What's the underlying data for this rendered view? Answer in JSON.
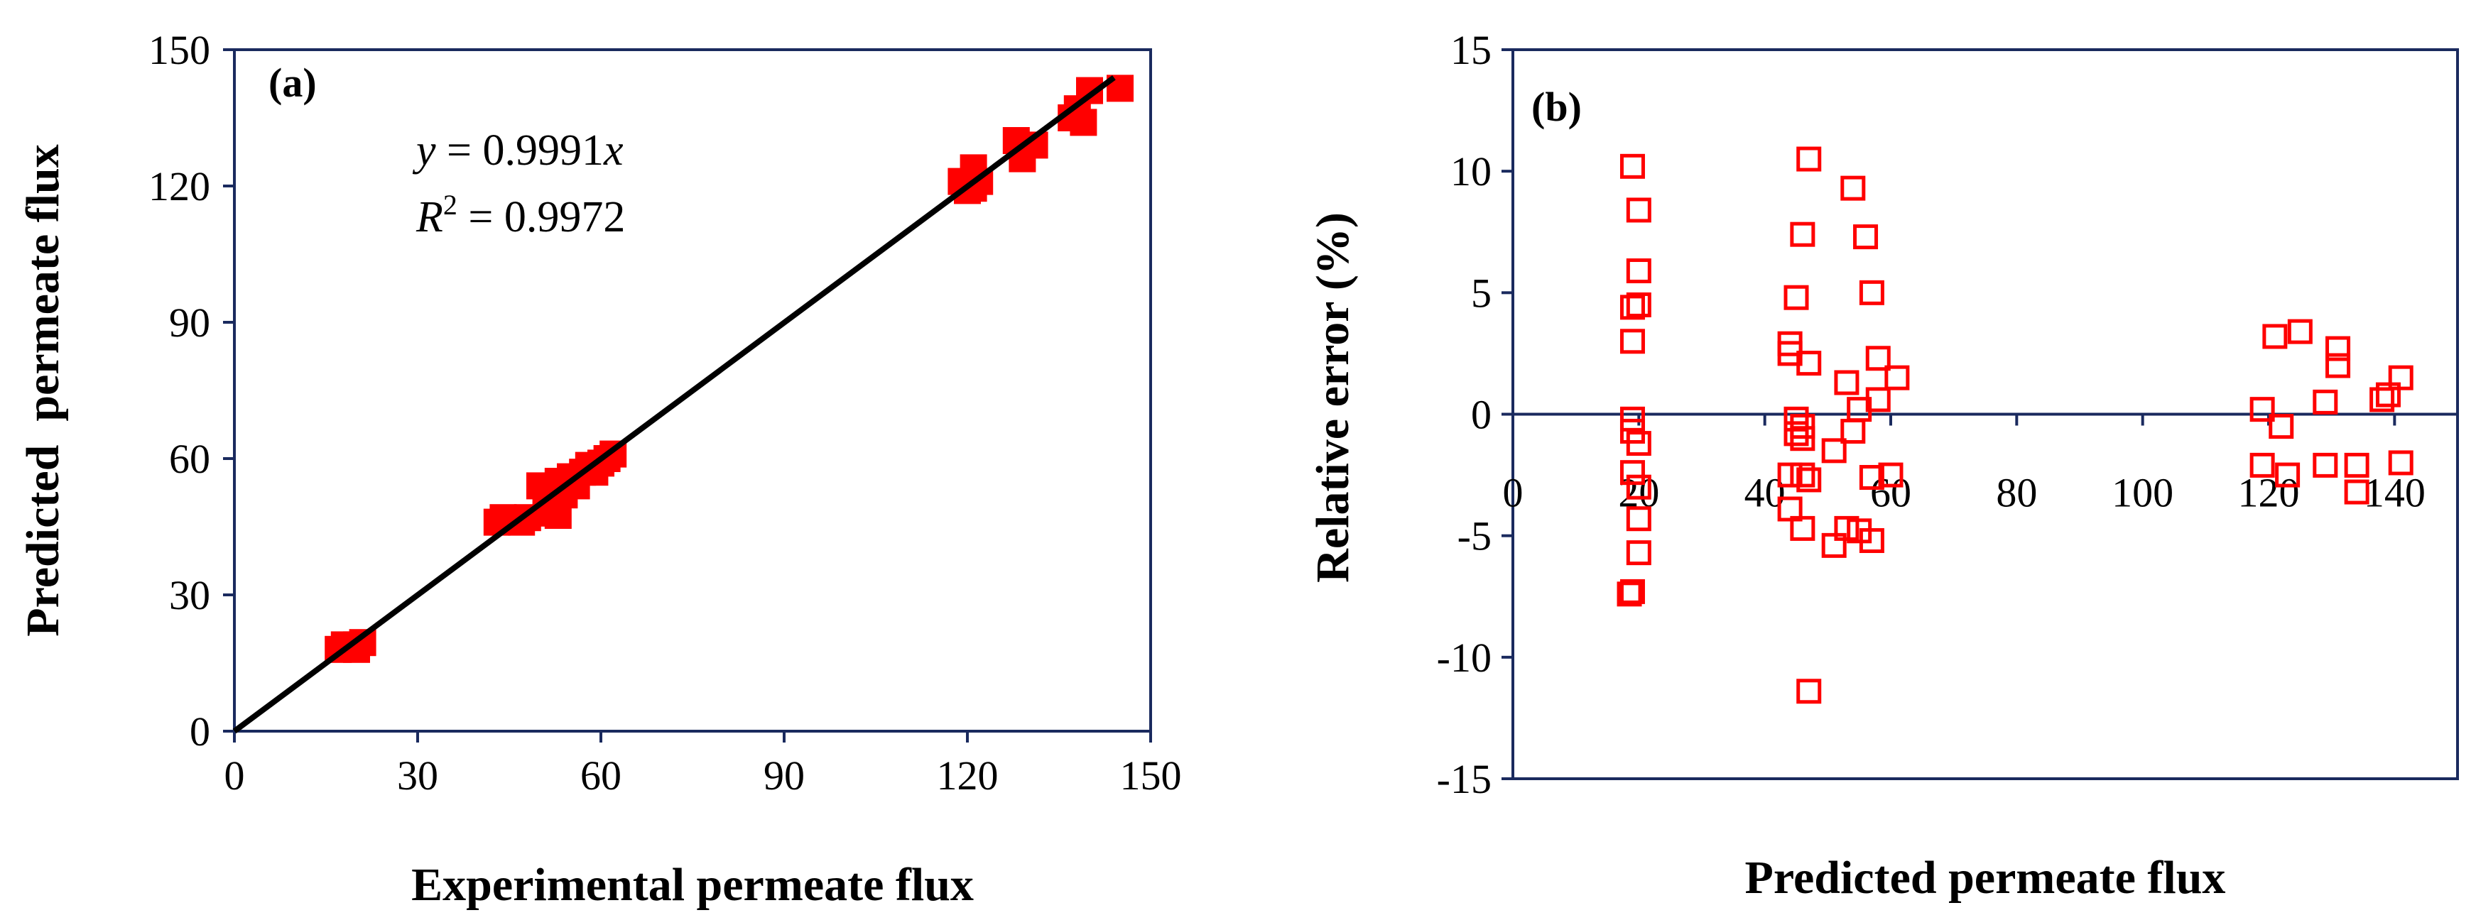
{
  "chart_data": [
    {
      "type": "scatter",
      "panel_label": "(a)",
      "xlabel": "Experimental permeate flux",
      "ylabel": "Predicted  permeate flux",
      "xlim": [
        0,
        150
      ],
      "ylim": [
        0,
        150
      ],
      "xticks": [
        0,
        30,
        60,
        90,
        120,
        150
      ],
      "yticks": [
        0,
        30,
        60,
        90,
        120,
        150
      ],
      "annotation_eq_var": "y",
      "annotation_eq_rest": " = 0.9991",
      "annotation_eq_var2": "x",
      "annotation_r2_var": "R",
      "annotation_r2_sup": "2",
      "annotation_r2_rest": " = 0.9972",
      "grid": false,
      "marker": "filled-square",
      "color": "#ff0000",
      "line_color": "#000000",
      "fit_line": {
        "slope": 0.9991,
        "x": [
          0,
          144
        ]
      },
      "points": [
        [
          17,
          18
        ],
        [
          18,
          19
        ],
        [
          19,
          18.5
        ],
        [
          20,
          18
        ],
        [
          21,
          19.5
        ],
        [
          20,
          19
        ],
        [
          43,
          46
        ],
        [
          45,
          46.5
        ],
        [
          47,
          46
        ],
        [
          48,
          47
        ],
        [
          44,
          47
        ],
        [
          50,
          54
        ],
        [
          51,
          50
        ],
        [
          52,
          48
        ],
        [
          53,
          55
        ],
        [
          54,
          52
        ],
        [
          55,
          56
        ],
        [
          56,
          54
        ],
        [
          57,
          57
        ],
        [
          58,
          58.5
        ],
        [
          59,
          57
        ],
        [
          60,
          59
        ],
        [
          61,
          60
        ],
        [
          62,
          61
        ],
        [
          53,
          47.5
        ],
        [
          119,
          121
        ],
        [
          120,
          119
        ],
        [
          121,
          124
        ],
        [
          122,
          121
        ],
        [
          121,
          119.5
        ],
        [
          128,
          130
        ],
        [
          129,
          126
        ],
        [
          131,
          129
        ],
        [
          137,
          135
        ],
        [
          138,
          137
        ],
        [
          139,
          134
        ],
        [
          140,
          141
        ],
        [
          145,
          141.5
        ]
      ]
    },
    {
      "type": "scatter",
      "panel_label": "(b)",
      "xlabel": "Predicted permeate flux",
      "ylabel": "Relative error (%)",
      "xlim": [
        0,
        150
      ],
      "ylim": [
        -15,
        15
      ],
      "xticks": [
        0,
        20,
        40,
        60,
        80,
        100,
        120,
        140
      ],
      "yticks": [
        -15,
        -10,
        -5,
        0,
        5,
        10,
        15
      ],
      "grid": false,
      "marker": "open-square",
      "color": "#ff0000",
      "zero_line": true,
      "points": [
        [
          19,
          10.2
        ],
        [
          20,
          8.4
        ],
        [
          20,
          5.9
        ],
        [
          19,
          4.4
        ],
        [
          20,
          4.5
        ],
        [
          19,
          3.0
        ],
        [
          19,
          -0.2
        ],
        [
          19,
          -0.7
        ],
        [
          20,
          -1.2
        ],
        [
          19,
          -2.4
        ],
        [
          20,
          -3.0
        ],
        [
          20,
          -4.3
        ],
        [
          20,
          -5.7
        ],
        [
          19,
          -7.3
        ],
        [
          18.5,
          -7.4
        ],
        [
          47,
          10.5
        ],
        [
          46,
          7.4
        ],
        [
          45,
          4.8
        ],
        [
          44,
          2.9
        ],
        [
          44,
          2.5
        ],
        [
          47,
          2.1
        ],
        [
          45,
          -0.2
        ],
        [
          46,
          -0.5
        ],
        [
          45,
          -0.8
        ],
        [
          46,
          -1.0
        ],
        [
          44,
          -2.5
        ],
        [
          46,
          -2.5
        ],
        [
          47,
          -2.7
        ],
        [
          44,
          -3.9
        ],
        [
          46,
          -4.7
        ],
        [
          47,
          -11.4
        ],
        [
          54,
          9.3
        ],
        [
          56,
          7.3
        ],
        [
          57,
          5.0
        ],
        [
          58,
          2.3
        ],
        [
          61,
          1.5
        ],
        [
          53,
          1.3
        ],
        [
          58,
          0.6
        ],
        [
          55,
          0.2
        ],
        [
          54,
          -0.7
        ],
        [
          51,
          -1.5
        ],
        [
          60,
          -2.5
        ],
        [
          57,
          -2.6
        ],
        [
          53,
          -4.7
        ],
        [
          55,
          -4.8
        ],
        [
          57,
          -5.2
        ],
        [
          51,
          -5.4
        ],
        [
          119,
          0.2
        ],
        [
          121,
          3.2
        ],
        [
          125,
          3.4
        ],
        [
          122,
          -0.5
        ],
        [
          119,
          -2.1
        ],
        [
          123,
          -2.5
        ],
        [
          131,
          2.7
        ],
        [
          131,
          2.0
        ],
        [
          129,
          0.5
        ],
        [
          129,
          -2.1
        ],
        [
          134,
          -2.1
        ],
        [
          134,
          -3.2
        ],
        [
          138,
          0.6
        ],
        [
          139,
          0.8
        ],
        [
          141,
          1.5
        ],
        [
          141,
          -2.0
        ]
      ]
    }
  ]
}
